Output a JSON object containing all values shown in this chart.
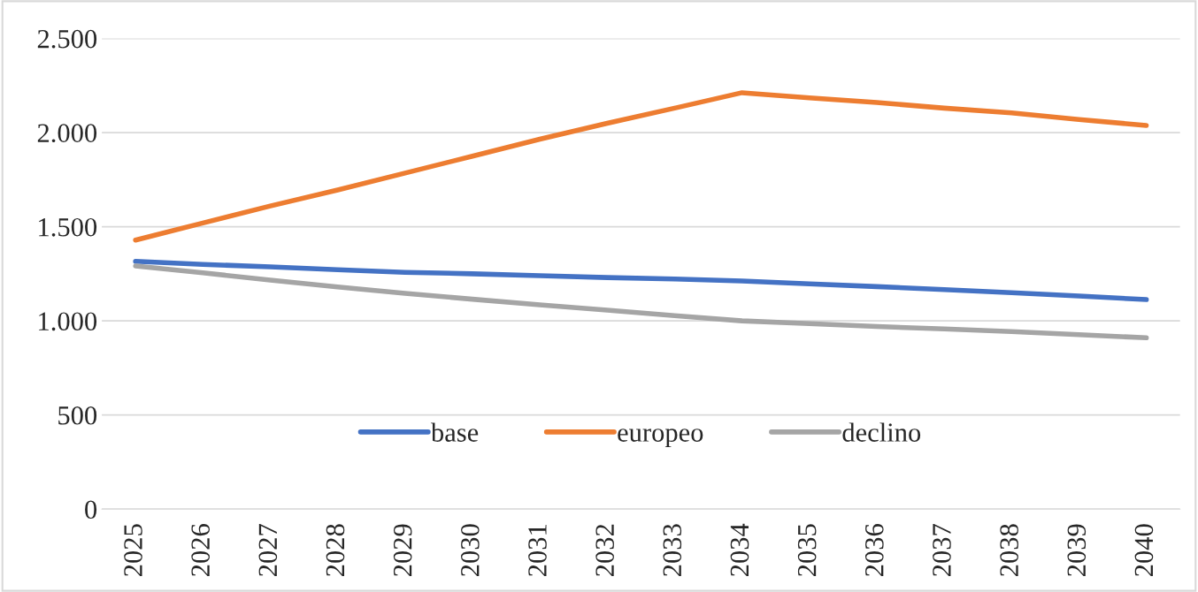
{
  "chart_data": {
    "type": "line",
    "categories": [
      "2025",
      "2026",
      "2027",
      "2028",
      "2029",
      "2030",
      "2031",
      "2032",
      "2033",
      "2034",
      "2035",
      "2036",
      "2037",
      "2038",
      "2039",
      "2040"
    ],
    "series": [
      {
        "name": "base",
        "color": "#4472c4",
        "values": [
          1316,
          1300,
          1287,
          1272,
          1258,
          1250,
          1240,
          1230,
          1222,
          1212,
          1197,
          1182,
          1166,
          1150,
          1132,
          1113
        ]
      },
      {
        "name": "europeo",
        "color": "#ed7d31",
        "values": [
          1429,
          1520,
          1610,
          1695,
          1785,
          1875,
          1965,
          2050,
          2130,
          2212,
          2185,
          2160,
          2130,
          2105,
          2070,
          2038
        ]
      },
      {
        "name": "declino",
        "color": "#a5a5a5",
        "values": [
          1292,
          1255,
          1217,
          1180,
          1146,
          1115,
          1085,
          1057,
          1028,
          1000,
          985,
          970,
          957,
          943,
          927,
          910
        ]
      }
    ],
    "ylim": [
      0,
      2500
    ],
    "yticks": [
      {
        "value": 0,
        "label": "0"
      },
      {
        "value": 500,
        "label": "500"
      },
      {
        "value": 1000,
        "label": "1.000"
      },
      {
        "value": 1500,
        "label": "1.500"
      },
      {
        "value": 2000,
        "label": "2.000"
      },
      {
        "value": 2500,
        "label": "2.500"
      }
    ],
    "grid": "y",
    "legend": "bottom",
    "marker": "none",
    "line_style": "solid"
  }
}
